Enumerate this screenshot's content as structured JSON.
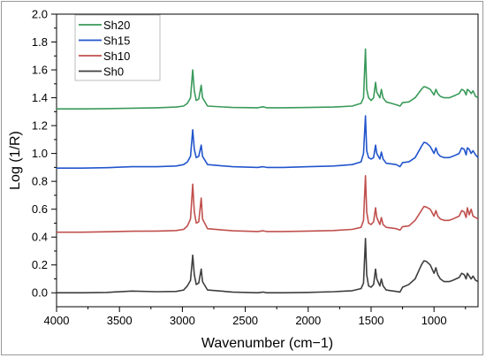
{
  "chart_data": {
    "type": "line",
    "title": "",
    "xlabel": "Wavenumber (cm−1)",
    "ylabel": "Log (1/R)",
    "xlim": [
      4000,
      650
    ],
    "ylim": [
      -0.1,
      2.0
    ],
    "x_reversed": true,
    "x_ticks": [
      4000,
      3500,
      3000,
      2500,
      2000,
      1500,
      1000
    ],
    "y_ticks": [
      0.0,
      0.2,
      0.4,
      0.6,
      0.8,
      1.0,
      1.2,
      1.4,
      1.6,
      1.8,
      2.0
    ],
    "x_tick_labels": [
      "4000",
      "3500",
      "3000",
      "2500",
      "2000",
      "1500",
      "1000"
    ],
    "y_tick_labels": [
      "0.0",
      "0.2",
      "0.4",
      "0.6",
      "0.8",
      "1.0",
      "1.2",
      "1.4",
      "1.6",
      "1.8",
      "2.0"
    ],
    "grid": false,
    "legend_position": "top-left",
    "series": [
      {
        "name": "Sh20",
        "color": "#3a9a5a",
        "points": [
          [
            4000,
            1.32
          ],
          [
            3800,
            1.32
          ],
          [
            3600,
            1.322
          ],
          [
            3400,
            1.325
          ],
          [
            3200,
            1.328
          ],
          [
            3050,
            1.333
          ],
          [
            2990,
            1.34
          ],
          [
            2960,
            1.36
          ],
          [
            2935,
            1.4
          ],
          [
            2918,
            1.6
          ],
          [
            2905,
            1.45
          ],
          [
            2890,
            1.38
          ],
          [
            2870,
            1.39
          ],
          [
            2850,
            1.49
          ],
          [
            2840,
            1.4
          ],
          [
            2800,
            1.34
          ],
          [
            2600,
            1.33
          ],
          [
            2400,
            1.328
          ],
          [
            2360,
            1.335
          ],
          [
            2330,
            1.328
          ],
          [
            2200,
            1.328
          ],
          [
            2000,
            1.33
          ],
          [
            1800,
            1.333
          ],
          [
            1650,
            1.34
          ],
          [
            1580,
            1.36
          ],
          [
            1560,
            1.4
          ],
          [
            1545,
            1.75
          ],
          [
            1535,
            1.46
          ],
          [
            1520,
            1.4
          ],
          [
            1500,
            1.38
          ],
          [
            1480,
            1.4
          ],
          [
            1465,
            1.51
          ],
          [
            1455,
            1.44
          ],
          [
            1430,
            1.4
          ],
          [
            1418,
            1.46
          ],
          [
            1405,
            1.4
          ],
          [
            1380,
            1.37
          ],
          [
            1340,
            1.36
          ],
          [
            1300,
            1.35
          ],
          [
            1270,
            1.34
          ],
          [
            1250,
            1.365
          ],
          [
            1200,
            1.37
          ],
          [
            1150,
            1.4
          ],
          [
            1100,
            1.46
          ],
          [
            1080,
            1.48
          ],
          [
            1060,
            1.475
          ],
          [
            1030,
            1.46
          ],
          [
            1000,
            1.42
          ],
          [
            985,
            1.46
          ],
          [
            970,
            1.43
          ],
          [
            950,
            1.41
          ],
          [
            920,
            1.4
          ],
          [
            880,
            1.4
          ],
          [
            850,
            1.41
          ],
          [
            800,
            1.43
          ],
          [
            780,
            1.46
          ],
          [
            760,
            1.45
          ],
          [
            745,
            1.42
          ],
          [
            735,
            1.46
          ],
          [
            720,
            1.45
          ],
          [
            705,
            1.43
          ],
          [
            690,
            1.45
          ],
          [
            670,
            1.41
          ],
          [
            650,
            1.4
          ]
        ]
      },
      {
        "name": "Sh15",
        "color": "#2255cc",
        "points": [
          [
            4000,
            0.895
          ],
          [
            3800,
            0.895
          ],
          [
            3600,
            0.898
          ],
          [
            3400,
            0.905
          ],
          [
            3200,
            0.905
          ],
          [
            3050,
            0.91
          ],
          [
            2990,
            0.92
          ],
          [
            2960,
            0.94
          ],
          [
            2935,
            0.98
          ],
          [
            2918,
            1.17
          ],
          [
            2905,
            1.03
          ],
          [
            2890,
            0.97
          ],
          [
            2870,
            0.98
          ],
          [
            2850,
            1.06
          ],
          [
            2840,
            0.98
          ],
          [
            2800,
            0.92
          ],
          [
            2600,
            0.905
          ],
          [
            2400,
            0.9
          ],
          [
            2360,
            0.905
          ],
          [
            2330,
            0.9
          ],
          [
            2200,
            0.9
          ],
          [
            2000,
            0.905
          ],
          [
            1800,
            0.91
          ],
          [
            1650,
            0.92
          ],
          [
            1580,
            0.94
          ],
          [
            1560,
            1.0
          ],
          [
            1545,
            1.27
          ],
          [
            1535,
            1.02
          ],
          [
            1520,
            0.97
          ],
          [
            1500,
            0.96
          ],
          [
            1480,
            0.97
          ],
          [
            1465,
            1.06
          ],
          [
            1455,
            1.0
          ],
          [
            1430,
            0.96
          ],
          [
            1418,
            1.01
          ],
          [
            1405,
            0.96
          ],
          [
            1380,
            0.93
          ],
          [
            1340,
            0.925
          ],
          [
            1300,
            0.92
          ],
          [
            1270,
            0.905
          ],
          [
            1250,
            0.935
          ],
          [
            1200,
            0.94
          ],
          [
            1150,
            0.97
          ],
          [
            1100,
            1.05
          ],
          [
            1080,
            1.08
          ],
          [
            1060,
            1.075
          ],
          [
            1030,
            1.05
          ],
          [
            1000,
            1.0
          ],
          [
            985,
            1.04
          ],
          [
            970,
            1.0
          ],
          [
            950,
            0.98
          ],
          [
            920,
            0.97
          ],
          [
            880,
            0.97
          ],
          [
            850,
            0.98
          ],
          [
            800,
            1.0
          ],
          [
            780,
            1.04
          ],
          [
            760,
            1.03
          ],
          [
            745,
            0.99
          ],
          [
            735,
            1.04
          ],
          [
            720,
            1.03
          ],
          [
            705,
            1.0
          ],
          [
            690,
            1.02
          ],
          [
            670,
            0.99
          ],
          [
            650,
            0.97
          ]
        ]
      },
      {
        "name": "Sh10",
        "color": "#c0504d",
        "points": [
          [
            4000,
            0.435
          ],
          [
            3800,
            0.435
          ],
          [
            3600,
            0.438
          ],
          [
            3400,
            0.442
          ],
          [
            3200,
            0.443
          ],
          [
            3050,
            0.447
          ],
          [
            2990,
            0.455
          ],
          [
            2960,
            0.48
          ],
          [
            2935,
            0.53
          ],
          [
            2918,
            0.78
          ],
          [
            2905,
            0.58
          ],
          [
            2890,
            0.5
          ],
          [
            2870,
            0.51
          ],
          [
            2850,
            0.68
          ],
          [
            2840,
            0.53
          ],
          [
            2800,
            0.46
          ],
          [
            2600,
            0.445
          ],
          [
            2400,
            0.44
          ],
          [
            2360,
            0.445
          ],
          [
            2330,
            0.44
          ],
          [
            2200,
            0.44
          ],
          [
            2000,
            0.443
          ],
          [
            1800,
            0.447
          ],
          [
            1650,
            0.455
          ],
          [
            1580,
            0.47
          ],
          [
            1560,
            0.52
          ],
          [
            1545,
            0.84
          ],
          [
            1535,
            0.58
          ],
          [
            1520,
            0.5
          ],
          [
            1500,
            0.49
          ],
          [
            1480,
            0.51
          ],
          [
            1465,
            0.61
          ],
          [
            1455,
            0.54
          ],
          [
            1430,
            0.49
          ],
          [
            1418,
            0.54
          ],
          [
            1405,
            0.49
          ],
          [
            1380,
            0.47
          ],
          [
            1340,
            0.465
          ],
          [
            1300,
            0.46
          ],
          [
            1270,
            0.45
          ],
          [
            1250,
            0.475
          ],
          [
            1200,
            0.48
          ],
          [
            1150,
            0.52
          ],
          [
            1100,
            0.59
          ],
          [
            1080,
            0.62
          ],
          [
            1060,
            0.615
          ],
          [
            1030,
            0.6
          ],
          [
            1000,
            0.55
          ],
          [
            985,
            0.59
          ],
          [
            970,
            0.55
          ],
          [
            950,
            0.53
          ],
          [
            920,
            0.52
          ],
          [
            880,
            0.52
          ],
          [
            850,
            0.53
          ],
          [
            800,
            0.55
          ],
          [
            780,
            0.59
          ],
          [
            760,
            0.58
          ],
          [
            745,
            0.54
          ],
          [
            735,
            0.61
          ],
          [
            720,
            0.56
          ],
          [
            705,
            0.6
          ],
          [
            690,
            0.55
          ],
          [
            670,
            0.54
          ],
          [
            650,
            0.53
          ]
        ]
      },
      {
        "name": "Sh0",
        "color": "#3f3f3f",
        "points": [
          [
            4000,
            0.0
          ],
          [
            3800,
            0.0
          ],
          [
            3600,
            0.003
          ],
          [
            3400,
            0.012
          ],
          [
            3200,
            0.008
          ],
          [
            3050,
            0.01
          ],
          [
            2990,
            0.02
          ],
          [
            2960,
            0.05
          ],
          [
            2935,
            0.09
          ],
          [
            2918,
            0.27
          ],
          [
            2905,
            0.13
          ],
          [
            2890,
            0.06
          ],
          [
            2870,
            0.07
          ],
          [
            2850,
            0.17
          ],
          [
            2840,
            0.08
          ],
          [
            2800,
            0.02
          ],
          [
            2600,
            0.005
          ],
          [
            2400,
            0.0
          ],
          [
            2360,
            0.005
          ],
          [
            2330,
            0.0
          ],
          [
            2200,
            0.0
          ],
          [
            2000,
            0.003
          ],
          [
            1800,
            0.008
          ],
          [
            1650,
            0.015
          ],
          [
            1580,
            0.03
          ],
          [
            1560,
            0.07
          ],
          [
            1545,
            0.39
          ],
          [
            1535,
            0.13
          ],
          [
            1520,
            0.05
          ],
          [
            1500,
            0.04
          ],
          [
            1480,
            0.06
          ],
          [
            1465,
            0.17
          ],
          [
            1455,
            0.1
          ],
          [
            1430,
            0.05
          ],
          [
            1418,
            0.1
          ],
          [
            1405,
            0.05
          ],
          [
            1380,
            0.02
          ],
          [
            1340,
            0.015
          ],
          [
            1300,
            0.01
          ],
          [
            1270,
            0.005
          ],
          [
            1250,
            0.04
          ],
          [
            1200,
            0.06
          ],
          [
            1150,
            0.1
          ],
          [
            1100,
            0.2
          ],
          [
            1080,
            0.23
          ],
          [
            1060,
            0.225
          ],
          [
            1030,
            0.2
          ],
          [
            1000,
            0.14
          ],
          [
            985,
            0.18
          ],
          [
            970,
            0.13
          ],
          [
            950,
            0.1
          ],
          [
            920,
            0.08
          ],
          [
            880,
            0.08
          ],
          [
            850,
            0.09
          ],
          [
            800,
            0.11
          ],
          [
            780,
            0.14
          ],
          [
            760,
            0.13
          ],
          [
            745,
            0.1
          ],
          [
            735,
            0.14
          ],
          [
            720,
            0.12
          ],
          [
            705,
            0.1
          ],
          [
            690,
            0.12
          ],
          [
            670,
            0.09
          ],
          [
            650,
            0.08
          ]
        ]
      }
    ]
  }
}
